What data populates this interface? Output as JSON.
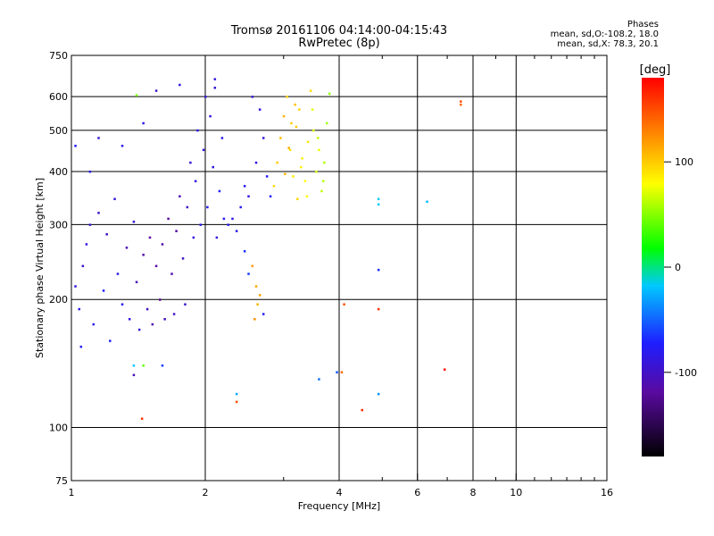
{
  "title_line1": "Tromsø 20161106 04:14:00-04:15:43",
  "title_line2": "RwPretec (8p)",
  "phases": {
    "header": "Phases",
    "line_o": "mean, sd,O:-108.2, 18.0",
    "line_x": "mean, sd,X: 78.3, 20.1"
  },
  "chart_data": {
    "type": "scatter",
    "xlabel": "Frequency [MHz]",
    "ylabel": "Stationary phase Virtual Height [km]",
    "xscale": "log",
    "yscale": "log",
    "xlim": [
      1,
      16
    ],
    "ylim": [
      75,
      750
    ],
    "xticks": [
      1,
      2,
      4,
      6,
      8,
      10,
      16
    ],
    "xminor": [
      3,
      5,
      7,
      9,
      11,
      12,
      13,
      14,
      15
    ],
    "yticks": [
      75,
      100,
      200,
      300,
      400,
      500,
      600,
      750
    ],
    "grid": true,
    "colorbar": {
      "label": "[deg]",
      "range": [
        -180,
        180
      ],
      "ticks": [
        100,
        0,
        -100
      ]
    },
    "series": [
      {
        "points": [
          [
            1.02,
            215,
            -115
          ],
          [
            1.04,
            190,
            -110
          ],
          [
            1.05,
            155,
            -105
          ],
          [
            1.06,
            240,
            -120
          ],
          [
            1.08,
            270,
            -112
          ],
          [
            1.1,
            300,
            -118
          ],
          [
            1.12,
            175,
            -108
          ],
          [
            1.15,
            320,
            -122
          ],
          [
            1.18,
            210,
            -100
          ],
          [
            1.2,
            285,
            -125
          ],
          [
            1.22,
            160,
            -98
          ],
          [
            1.25,
            345,
            -115
          ],
          [
            1.27,
            230,
            -110
          ],
          [
            1.3,
            195,
            -105
          ],
          [
            1.33,
            265,
            -128
          ],
          [
            1.35,
            180,
            -112
          ],
          [
            1.38,
            305,
            -120
          ],
          [
            1.4,
            220,
            -130
          ],
          [
            1.42,
            170,
            -118
          ],
          [
            1.45,
            255,
            -135
          ],
          [
            1.48,
            190,
            -125
          ],
          [
            1.5,
            280,
            -140
          ],
          [
            1.52,
            175,
            -132
          ],
          [
            1.55,
            240,
            -138
          ],
          [
            1.58,
            200,
            -142
          ],
          [
            1.6,
            270,
            -136
          ],
          [
            1.62,
            180,
            -128
          ],
          [
            1.65,
            310,
            -140
          ],
          [
            1.68,
            230,
            -134
          ],
          [
            1.7,
            185,
            -126
          ],
          [
            1.72,
            290,
            -138
          ],
          [
            1.75,
            350,
            -130
          ],
          [
            1.78,
            250,
            -122
          ],
          [
            1.8,
            195,
            -120
          ],
          [
            1.82,
            330,
            -125
          ],
          [
            1.85,
            420,
            -118
          ],
          [
            1.88,
            280,
            -115
          ],
          [
            1.9,
            380,
            -112
          ],
          [
            1.92,
            500,
            -110
          ],
          [
            1.95,
            300,
            -108
          ],
          [
            1.98,
            450,
            -112
          ],
          [
            2.0,
            600,
            -118
          ],
          [
            2.02,
            330,
            -105
          ],
          [
            2.05,
            540,
            -115
          ],
          [
            2.08,
            410,
            -110
          ],
          [
            2.1,
            630,
            -120
          ],
          [
            2.12,
            280,
            -112
          ],
          [
            2.15,
            360,
            -100
          ],
          [
            2.18,
            480,
            -108
          ],
          [
            2.2,
            310,
            -105
          ],
          [
            1.3,
            460,
            -110
          ],
          [
            1.45,
            520,
            -108
          ],
          [
            1.55,
            620,
            -120
          ],
          [
            1.75,
            640,
            -112
          ],
          [
            1.6,
            140,
            -90
          ],
          [
            1.15,
            480,
            -118
          ],
          [
            1.1,
            400,
            -105
          ],
          [
            1.02,
            460,
            -100
          ],
          [
            2.3,
            310,
            -110
          ],
          [
            2.4,
            330,
            -108
          ],
          [
            2.5,
            350,
            -112
          ],
          [
            2.6,
            420,
            -110
          ],
          [
            2.7,
            480,
            -115
          ],
          [
            2.55,
            600,
            -120
          ],
          [
            2.75,
            390,
            -105
          ],
          [
            2.8,
            350,
            -100
          ],
          [
            2.65,
            560,
            -118
          ],
          [
            2.45,
            370,
            -106
          ],
          [
            2.35,
            290,
            -110
          ],
          [
            2.25,
            300,
            -108
          ]
        ]
      },
      {
        "points": [
          [
            2.85,
            370,
            95
          ],
          [
            2.9,
            420,
            100
          ],
          [
            2.95,
            480,
            105
          ],
          [
            3.0,
            540,
            110
          ],
          [
            3.05,
            600,
            98
          ],
          [
            3.1,
            450,
            92
          ],
          [
            3.15,
            390,
            88
          ],
          [
            3.2,
            510,
            102
          ],
          [
            3.25,
            560,
            96
          ],
          [
            3.3,
            430,
            85
          ],
          [
            3.35,
            380,
            80
          ],
          [
            3.4,
            470,
            90
          ],
          [
            3.45,
            620,
            94
          ],
          [
            3.5,
            500,
            70
          ],
          [
            3.55,
            400,
            65
          ],
          [
            3.6,
            450,
            75
          ],
          [
            3.65,
            360,
            60
          ],
          [
            3.7,
            420,
            55
          ],
          [
            3.75,
            520,
            50
          ],
          [
            3.8,
            610,
            45
          ],
          [
            3.02,
            395,
            108
          ],
          [
            3.08,
            455,
            112
          ],
          [
            3.12,
            520,
            100
          ],
          [
            3.18,
            575,
            104
          ],
          [
            3.22,
            345,
            96
          ],
          [
            3.28,
            410,
            86
          ],
          [
            3.38,
            350,
            82
          ],
          [
            3.48,
            560,
            72
          ],
          [
            3.58,
            480,
            62
          ],
          [
            3.68,
            380,
            58
          ],
          [
            2.55,
            240,
            120
          ],
          [
            2.6,
            215,
            115
          ],
          [
            2.62,
            195,
            110
          ],
          [
            2.58,
            180,
            125
          ],
          [
            2.65,
            205,
            118
          ],
          [
            2.5,
            230,
            -90
          ],
          [
            2.45,
            260,
            -95
          ],
          [
            2.7,
            185,
            -100
          ],
          [
            4.1,
            195,
            150
          ],
          [
            4.9,
            190,
            160
          ],
          [
            4.9,
            335,
            -40
          ],
          [
            4.9,
            345,
            -38
          ],
          [
            4.9,
            235,
            -95
          ],
          [
            4.9,
            120,
            -60
          ],
          [
            6.3,
            340,
            -45
          ],
          [
            7.5,
            575,
            140
          ],
          [
            7.5,
            585,
            150
          ],
          [
            6.9,
            137,
            175
          ],
          [
            4.05,
            135,
            140
          ],
          [
            3.95,
            135,
            -80
          ],
          [
            3.6,
            130,
            -70
          ],
          [
            4.5,
            110,
            165
          ],
          [
            2.35,
            115,
            150
          ],
          [
            2.35,
            120,
            -50
          ],
          [
            1.4,
            605,
            40
          ],
          [
            1.45,
            140,
            30
          ],
          [
            1.38,
            133,
            -130
          ],
          [
            1.44,
            105,
            160
          ],
          [
            1.38,
            140,
            -40
          ],
          [
            2.1,
            660,
            -115
          ]
        ]
      }
    ]
  }
}
